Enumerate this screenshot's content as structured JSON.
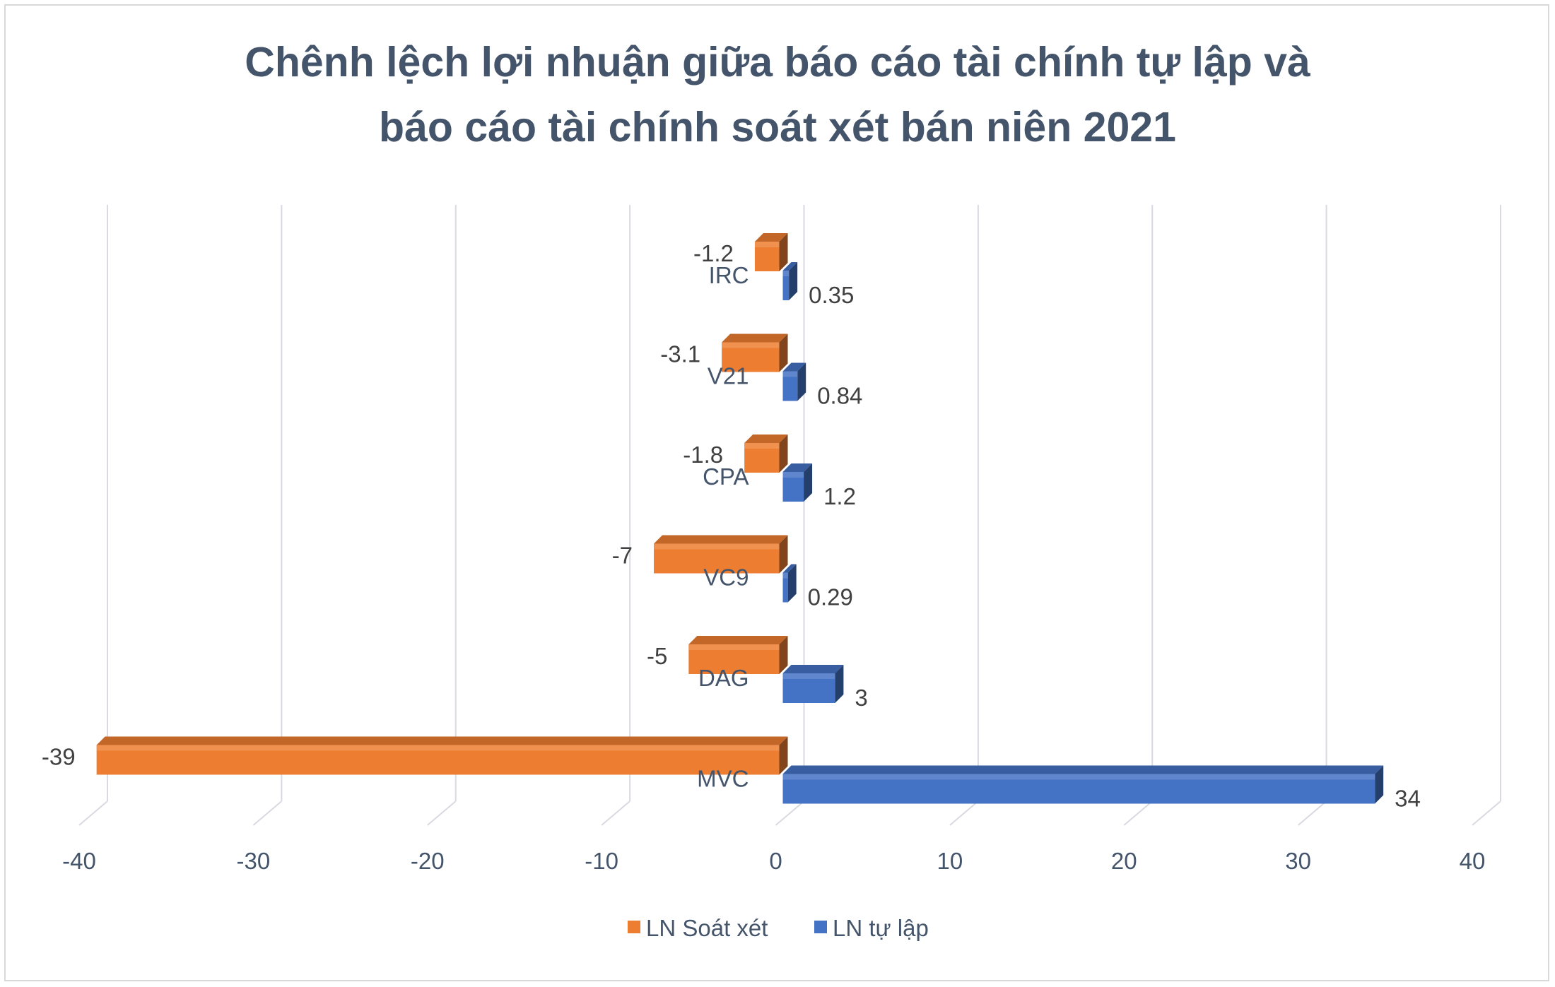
{
  "chart_data": {
    "type": "bar",
    "orientation": "horizontal",
    "title": "Chênh lệch lợi nhuận giữa báo cáo tài chính tự lập và báo cáo tài chính soát xét bán niên 2021",
    "title_lines": [
      "Chênh lệch lợi nhuận giữa báo cáo tài chính tự lập và",
      "báo cáo tài chính soát xét bán niên 2021"
    ],
    "categories": [
      "IRC",
      "V21",
      "CPA",
      "VC9",
      "DAG",
      "MVC"
    ],
    "series": [
      {
        "name": "LN Soát xét",
        "color": "#ed7d31",
        "values": [
          -1.2,
          -3.1,
          -1.8,
          -7,
          -5,
          -39
        ],
        "labels": [
          "-1.2",
          "-3.1",
          "-1.8",
          "-7",
          "-5",
          "-39"
        ]
      },
      {
        "name": "LN tự lập",
        "color": "#4472c4",
        "values": [
          0.35,
          0.84,
          1.2,
          0.29,
          3,
          34
        ],
        "labels": [
          "0.35",
          "0.84",
          "1.2",
          "0.29",
          "3",
          "34"
        ]
      }
    ],
    "xlim": [
      -40,
      40
    ],
    "xticks": [
      "-40",
      "-30",
      "-20",
      "-10",
      "0",
      "10",
      "20",
      "30",
      "40"
    ],
    "grid": true,
    "legend_position": "bottom",
    "style": "3d-clustered-bar"
  }
}
